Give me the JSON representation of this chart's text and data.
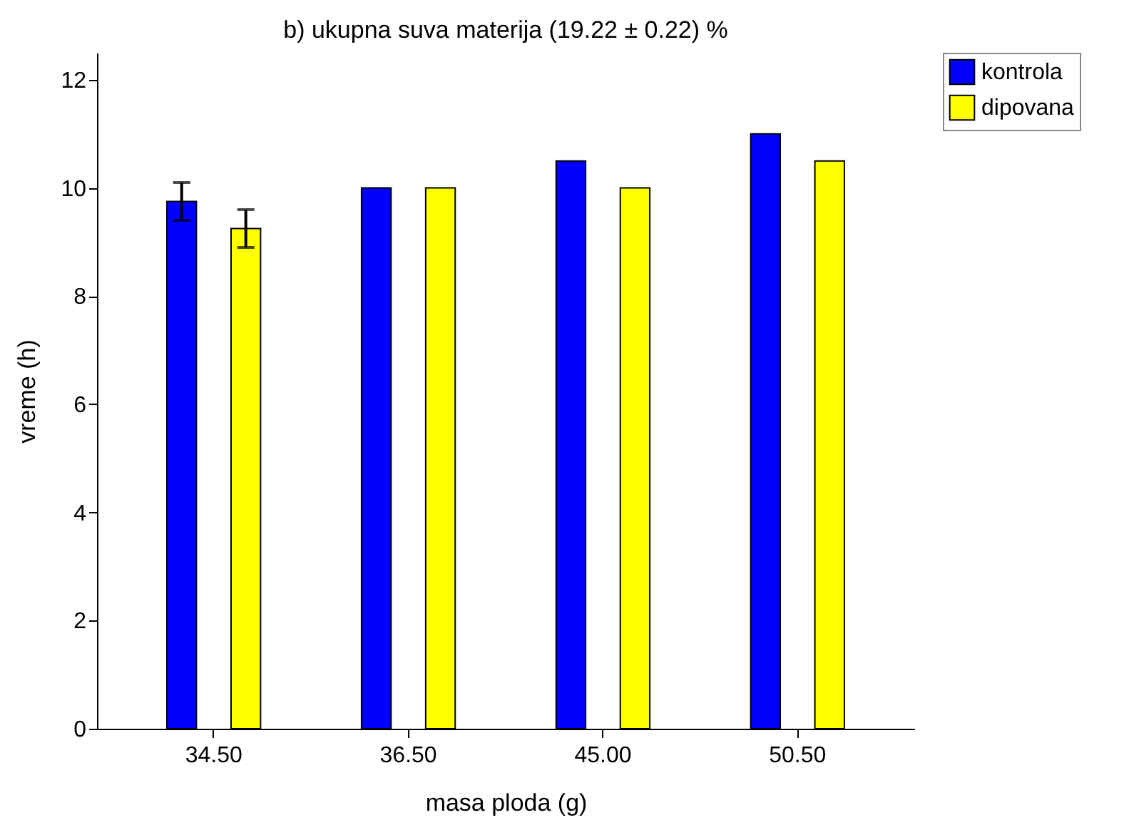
{
  "chart_data": {
    "type": "bar",
    "title": "b) ukupna suva materija (19.22 ± 0.22) %",
    "xlabel": "masa ploda (g)",
    "ylabel": "vreme (h)",
    "categories": [
      "34.50",
      "36.50",
      "45.00",
      "50.50"
    ],
    "series": [
      {
        "name": "kontrola",
        "color": "#0000ff",
        "values": [
          9.75,
          10,
          10.5,
          11
        ],
        "errors": [
          0.35,
          null,
          null,
          null
        ]
      },
      {
        "name": "dipovana",
        "color": "#ffff00",
        "values": [
          9.25,
          10,
          10,
          10.5
        ],
        "errors": [
          0.35,
          null,
          null,
          null
        ]
      }
    ],
    "ylim": [
      0,
      12.5
    ],
    "yticks": [
      0,
      2,
      4,
      6,
      8,
      10,
      12
    ],
    "grid": false,
    "legend": "right"
  }
}
